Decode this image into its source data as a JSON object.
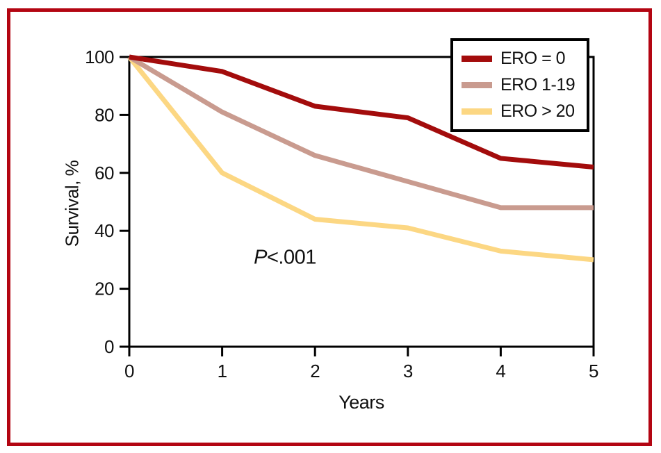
{
  "figure": {
    "background": "#FFFFFF",
    "border_color": "#B30512",
    "axis_color": "#000000"
  },
  "chart_data": {
    "type": "line",
    "title": "",
    "xlabel": "Years",
    "ylabel": "Survival, %",
    "annotation": {
      "symbol": "P",
      "text": "<.001"
    },
    "x": [
      0,
      1,
      2,
      3,
      4,
      5
    ],
    "xlim": [
      0,
      5
    ],
    "ylim": [
      0,
      100
    ],
    "x_ticks": [
      0,
      1,
      2,
      3,
      4,
      5
    ],
    "y_ticks": [
      0,
      20,
      40,
      60,
      80,
      100
    ],
    "grid": false,
    "frame": "box",
    "legend_position": "top-right",
    "series": [
      {
        "name": "ERO = 0",
        "color": "#A30C0C",
        "values": [
          100,
          95,
          83,
          79,
          65,
          62
        ]
      },
      {
        "name": "ERO 1-19",
        "color": "#C99B8F",
        "values": [
          100,
          81,
          66,
          57,
          48,
          48
        ]
      },
      {
        "name": "ERO > 20",
        "color": "#FCD783",
        "values": [
          100,
          60,
          44,
          41,
          33,
          30
        ]
      }
    ]
  }
}
